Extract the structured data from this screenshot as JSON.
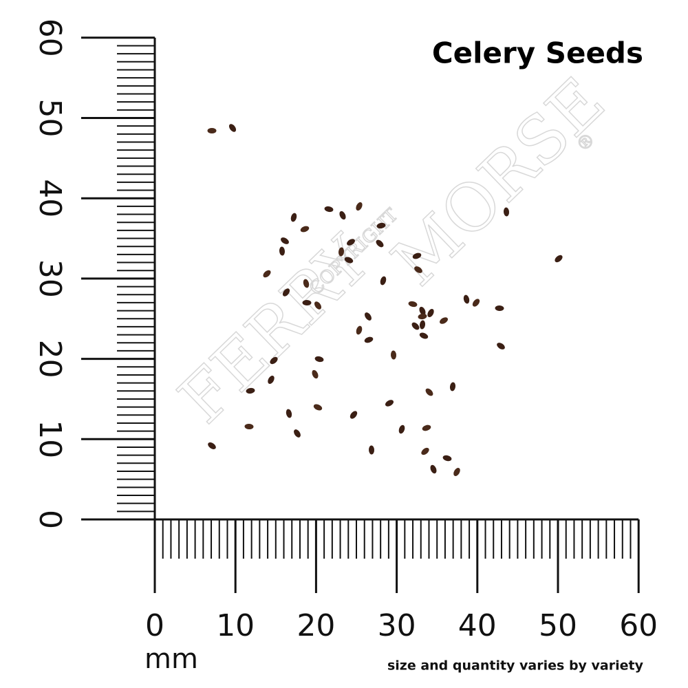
{
  "title": "Celery Seeds",
  "vertical_ruler": {
    "ticks": [
      0,
      10,
      20,
      30,
      40,
      50,
      60
    ]
  },
  "horizontal_ruler": {
    "ticks": [
      0,
      10,
      20,
      30,
      40,
      50,
      60
    ],
    "unit": "mm"
  },
  "note": "size and quantity varies by variety",
  "watermark": {
    "copyright": "COPYRIGHT",
    "brand_first": "FERRY",
    "brand_second": "MORSE",
    "mark": "®"
  }
}
